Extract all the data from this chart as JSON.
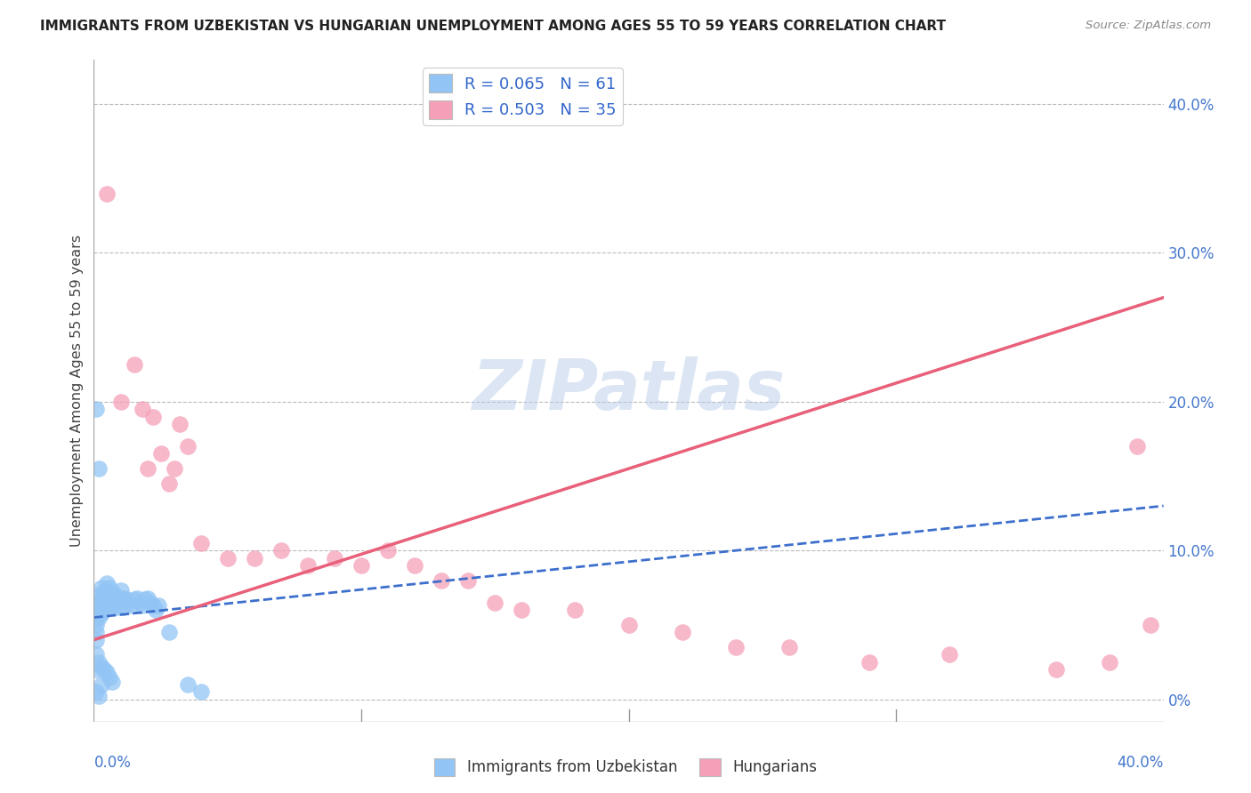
{
  "title": "IMMIGRANTS FROM UZBEKISTAN VS HUNGARIAN UNEMPLOYMENT AMONG AGES 55 TO 59 YEARS CORRELATION CHART",
  "source": "Source: ZipAtlas.com",
  "ylabel": "Unemployment Among Ages 55 to 59 years",
  "right_ytick_vals": [
    0.0,
    0.1,
    0.2,
    0.3,
    0.4
  ],
  "right_ytick_labels": [
    "0%",
    "10.0%",
    "20.0%",
    "30.0%",
    "40.0%"
  ],
  "xlim": [
    0,
    0.4
  ],
  "ylim": [
    -0.015,
    0.43
  ],
  "blue_R": "0.065",
  "blue_N": "61",
  "pink_R": "0.503",
  "pink_N": "35",
  "blue_color": "#92C5F5",
  "pink_color": "#F5A0B8",
  "blue_line_color": "#3D6FCC",
  "pink_line_color": "#E8607A",
  "background_color": "#FFFFFF",
  "grid_color": "#BBBBBB",
  "blue_scatter_x": [
    0.001,
    0.001,
    0.001,
    0.001,
    0.001,
    0.002,
    0.002,
    0.002,
    0.002,
    0.003,
    0.003,
    0.003,
    0.003,
    0.004,
    0.004,
    0.004,
    0.005,
    0.005,
    0.005,
    0.006,
    0.006,
    0.006,
    0.007,
    0.007,
    0.008,
    0.008,
    0.009,
    0.009,
    0.01,
    0.01,
    0.011,
    0.011,
    0.012,
    0.013,
    0.014,
    0.015,
    0.016,
    0.017,
    0.018,
    0.019,
    0.02,
    0.021,
    0.022,
    0.023,
    0.024,
    0.001,
    0.002,
    0.003,
    0.004,
    0.005,
    0.006,
    0.007,
    0.001,
    0.002,
    0.001,
    0.003,
    0.028,
    0.035,
    0.04,
    0.001,
    0.002
  ],
  "blue_scatter_y": [
    0.06,
    0.055,
    0.05,
    0.045,
    0.04,
    0.07,
    0.065,
    0.06,
    0.055,
    0.075,
    0.068,
    0.063,
    0.058,
    0.072,
    0.066,
    0.06,
    0.078,
    0.07,
    0.064,
    0.075,
    0.068,
    0.062,
    0.072,
    0.066,
    0.07,
    0.063,
    0.068,
    0.062,
    0.073,
    0.067,
    0.068,
    0.062,
    0.067,
    0.065,
    0.063,
    0.067,
    0.068,
    0.065,
    0.063,
    0.067,
    0.068,
    0.065,
    0.063,
    0.06,
    0.063,
    0.03,
    0.025,
    0.022,
    0.02,
    0.018,
    0.015,
    0.012,
    0.195,
    0.155,
    0.02,
    0.01,
    0.045,
    0.01,
    0.005,
    0.005,
    0.002
  ],
  "pink_scatter_x": [
    0.005,
    0.01,
    0.015,
    0.018,
    0.02,
    0.022,
    0.025,
    0.028,
    0.03,
    0.032,
    0.035,
    0.04,
    0.05,
    0.06,
    0.07,
    0.08,
    0.09,
    0.1,
    0.11,
    0.12,
    0.13,
    0.14,
    0.15,
    0.16,
    0.18,
    0.2,
    0.22,
    0.24,
    0.26,
    0.29,
    0.32,
    0.36,
    0.38,
    0.39,
    0.395
  ],
  "pink_scatter_y": [
    0.34,
    0.2,
    0.225,
    0.195,
    0.155,
    0.19,
    0.165,
    0.145,
    0.155,
    0.185,
    0.17,
    0.105,
    0.095,
    0.095,
    0.1,
    0.09,
    0.095,
    0.09,
    0.1,
    0.09,
    0.08,
    0.08,
    0.065,
    0.06,
    0.06,
    0.05,
    0.045,
    0.035,
    0.035,
    0.025,
    0.03,
    0.02,
    0.025,
    0.17,
    0.05
  ],
  "blue_line_x": [
    0.0,
    0.4
  ],
  "blue_line_y": [
    0.055,
    0.13
  ],
  "pink_line_x": [
    0.0,
    0.4
  ],
  "pink_line_y": [
    0.04,
    0.27
  ]
}
